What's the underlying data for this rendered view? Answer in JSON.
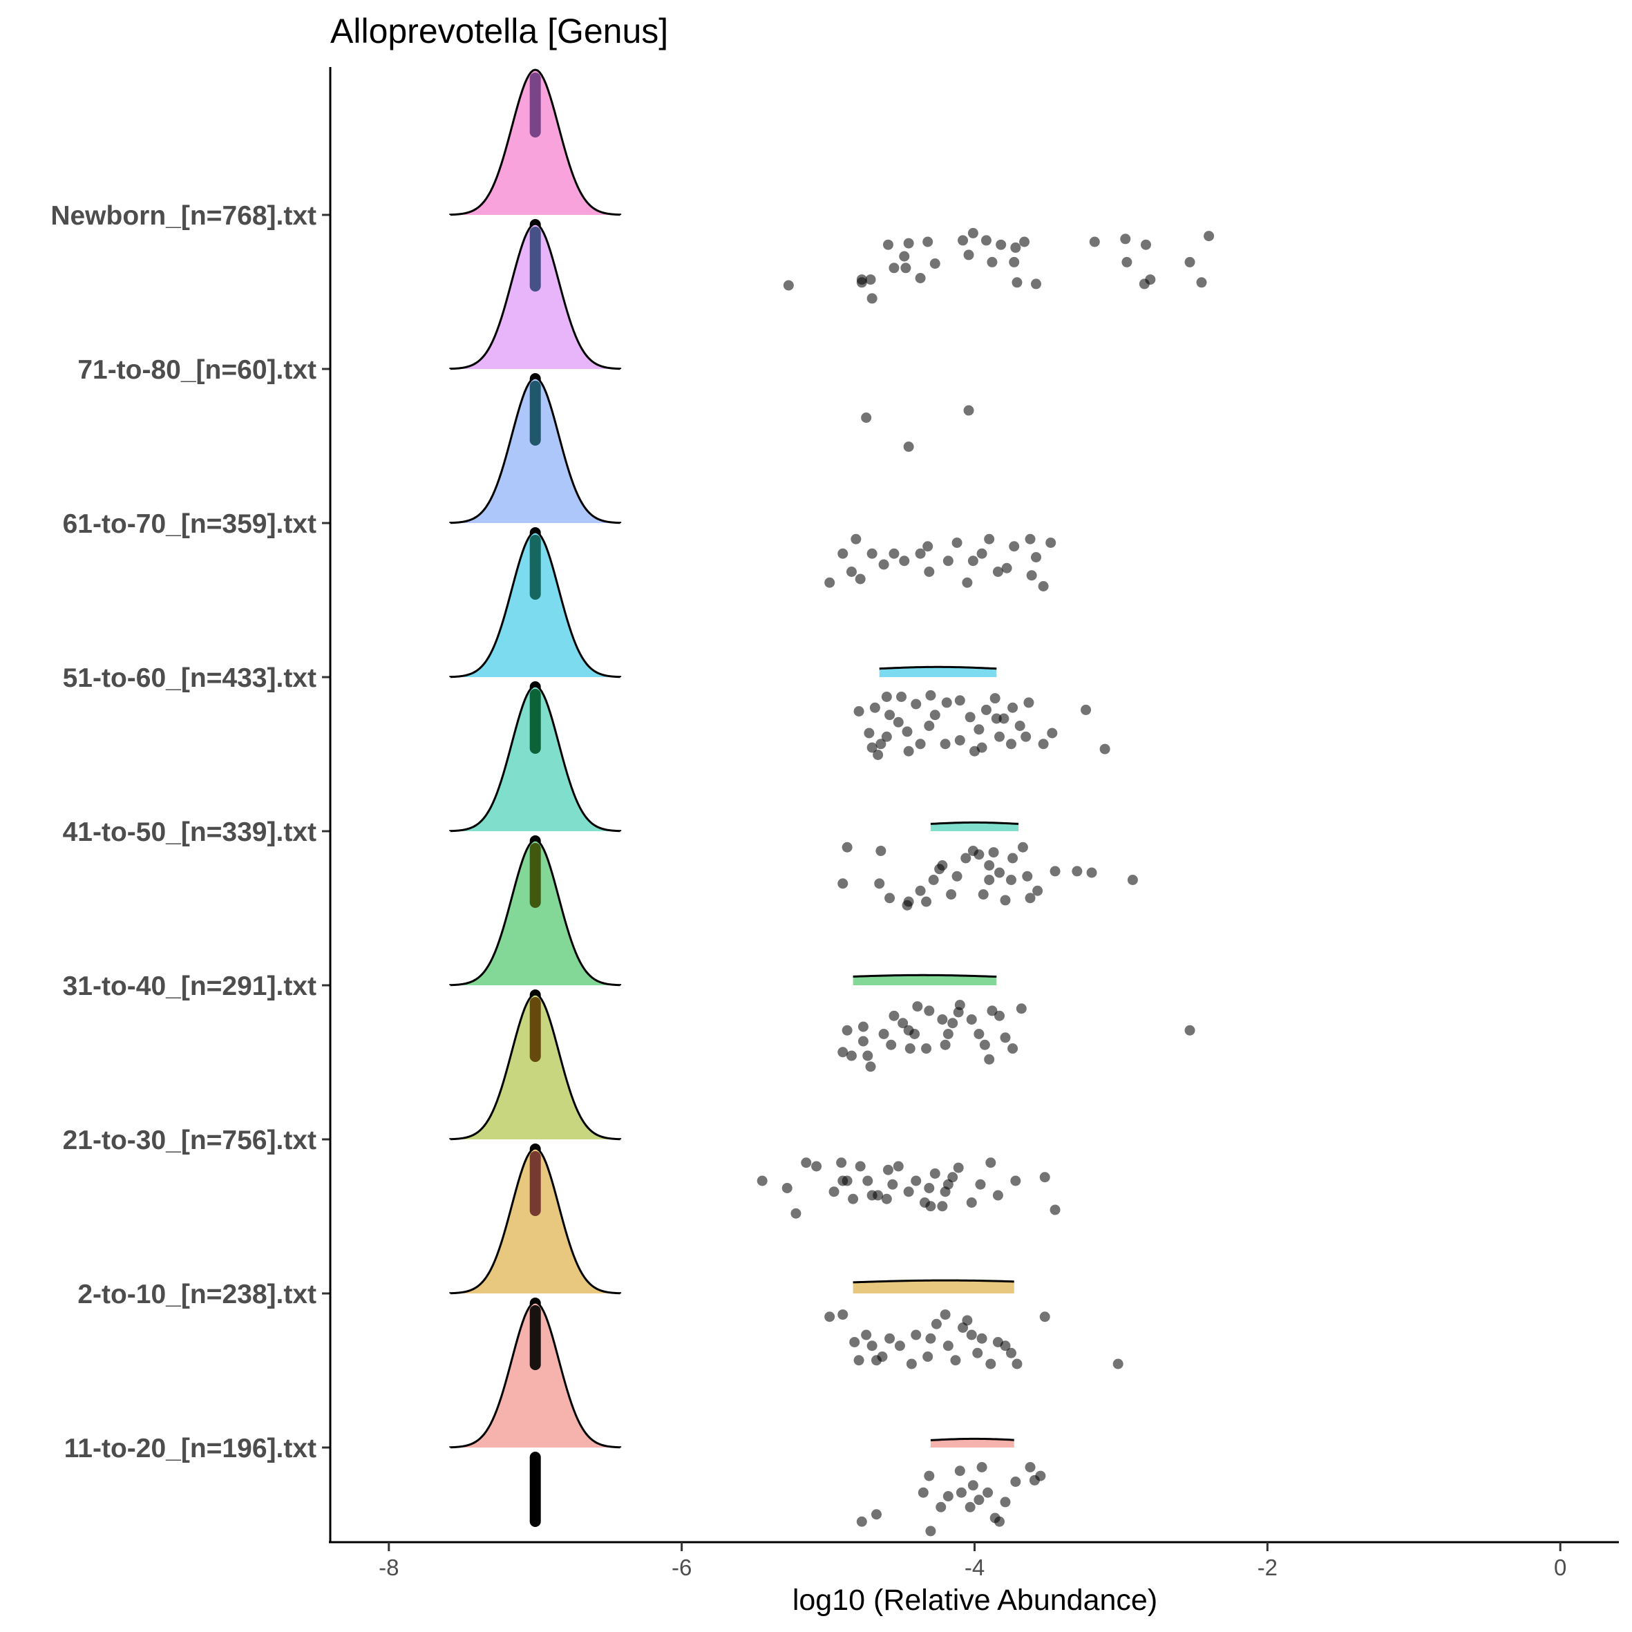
{
  "chart_data": {
    "type": "ridgeline",
    "title": "Alloprevotella [Genus]",
    "xlabel": "log10 (Relative Abundance)",
    "ylabel": "",
    "xlim": [
      -8.4,
      0.4
    ],
    "x_ticks": [
      -8,
      -6,
      -4,
      -2,
      0
    ],
    "x_tick_labels": [
      "-8",
      "-6",
      "-4",
      "-2",
      "0"
    ],
    "grid": false,
    "legend": "none",
    "point_color": "#000000",
    "point_opacity": 0.55,
    "baseline_value": -7,
    "series": [
      {
        "name": "Newborn_[n=768].txt",
        "color": "#f9a3dc",
        "median_color": "#6b3a80",
        "density": {
          "mean": -7,
          "sd": 0.16,
          "range": [
            -7.58,
            -6.42
          ]
        },
        "minor_density": null,
        "points": [
          [
            -5.27,
            0.2
          ],
          [
            -4.77,
            0.24
          ],
          [
            -4.77,
            0.28
          ],
          [
            -4.71,
            0.28
          ],
          [
            -4.7,
            0.02
          ],
          [
            -4.59,
            0.76
          ],
          [
            -4.55,
            0.44
          ],
          [
            -4.48,
            0.6
          ],
          [
            -4.45,
            0.78
          ],
          [
            -4.47,
            0.44
          ],
          [
            -4.37,
            0.3
          ],
          [
            -4.32,
            0.8
          ],
          [
            -4.27,
            0.5
          ],
          [
            -4.04,
            0.62
          ],
          [
            -4.08,
            0.82
          ],
          [
            -4.01,
            0.92
          ],
          [
            -3.88,
            0.52
          ],
          [
            -3.92,
            0.82
          ],
          [
            -3.82,
            0.76
          ],
          [
            -3.72,
            0.72
          ],
          [
            -3.73,
            0.52
          ],
          [
            -3.71,
            0.24
          ],
          [
            -3.66,
            0.8
          ],
          [
            -3.58,
            0.22
          ],
          [
            -3.18,
            0.8
          ],
          [
            -2.96,
            0.52
          ],
          [
            -2.97,
            0.84
          ],
          [
            -2.84,
            0.22
          ],
          [
            -2.83,
            0.76
          ],
          [
            -2.8,
            0.28
          ],
          [
            -2.53,
            0.52
          ],
          [
            -2.45,
            0.24
          ],
          [
            -2.4,
            0.88
          ]
        ]
      },
      {
        "name": "71-to-80_[n=60].txt",
        "color": "#e8b5fb",
        "median_color": "#34477a",
        "density": {
          "mean": -7,
          "sd": 0.16,
          "range": [
            -7.58,
            -6.42
          ]
        },
        "minor_density": null,
        "points": [
          [
            -4.74,
            0.5
          ],
          [
            -4.04,
            0.6
          ],
          [
            -4.45,
            0.1
          ]
        ]
      },
      {
        "name": "61-to-70_[n=359].txt",
        "color": "#aec7fb",
        "median_color": "#124a5c",
        "density": {
          "mean": -7,
          "sd": 0.16,
          "range": [
            -7.58,
            -6.42
          ]
        },
        "minor_density": null,
        "points": [
          [
            -4.99,
            0.35
          ],
          [
            -4.81,
            0.95
          ],
          [
            -4.9,
            0.75
          ],
          [
            -4.84,
            0.5
          ],
          [
            -4.78,
            0.4
          ],
          [
            -4.7,
            0.75
          ],
          [
            -4.62,
            0.6
          ],
          [
            -4.55,
            0.75
          ],
          [
            -4.48,
            0.65
          ],
          [
            -4.37,
            0.75
          ],
          [
            -4.31,
            0.5
          ],
          [
            -4.32,
            0.85
          ],
          [
            -4.18,
            0.65
          ],
          [
            -4.12,
            0.9
          ],
          [
            -4.05,
            0.35
          ],
          [
            -4.01,
            0.65
          ],
          [
            -3.95,
            0.75
          ],
          [
            -3.9,
            0.95
          ],
          [
            -3.84,
            0.5
          ],
          [
            -3.78,
            0.55
          ],
          [
            -3.73,
            0.85
          ],
          [
            -3.62,
            0.95
          ],
          [
            -3.58,
            0.7
          ],
          [
            -3.61,
            0.45
          ],
          [
            -3.53,
            0.3
          ],
          [
            -3.48,
            0.9
          ]
        ]
      },
      {
        "name": "51-to-60_[n=433].txt",
        "color": "#7cdbef",
        "median_color": "#0a5a50",
        "density": {
          "mean": -7,
          "sd": 0.16,
          "range": [
            -7.58,
            -6.42
          ]
        },
        "minor_density": {
          "mean": -4.25,
          "sd": 0.42,
          "range": [
            -4.65,
            -3.85
          ],
          "height": 0.07
        },
        "points": [
          [
            -4.79,
            0.7
          ],
          [
            -4.72,
            0.4
          ],
          [
            -4.68,
            0.75
          ],
          [
            -4.66,
            0.1
          ],
          [
            -4.64,
            0.25
          ],
          [
            -4.58,
            0.65
          ],
          [
            -4.52,
            0.55
          ],
          [
            -4.46,
            0.42
          ],
          [
            -4.4,
            0.8
          ],
          [
            -4.37,
            0.25
          ],
          [
            -4.31,
            0.5
          ],
          [
            -4.27,
            0.65
          ],
          [
            -4.19,
            0.82
          ],
          [
            -4.1,
            0.3
          ],
          [
            -4.03,
            0.62
          ],
          [
            -3.97,
            0.45
          ],
          [
            -3.92,
            0.72
          ],
          [
            -3.86,
            0.88
          ],
          [
            -3.83,
            0.35
          ],
          [
            -3.8,
            0.6
          ],
          [
            -3.74,
            0.75
          ],
          [
            -3.69,
            0.5
          ],
          [
            -3.63,
            0.82
          ],
          [
            -3.53,
            0.25
          ],
          [
            -3.47,
            0.4
          ],
          [
            -3.24,
            0.72
          ],
          [
            -3.11,
            0.18
          ],
          [
            -4.7,
            0.2
          ],
          [
            -4.6,
            0.35
          ],
          [
            -4.45,
            0.15
          ],
          [
            -4.2,
            0.25
          ],
          [
            -4.1,
            0.85
          ],
          [
            -4.0,
            0.15
          ],
          [
            -3.95,
            0.2
          ],
          [
            -3.75,
            0.25
          ],
          [
            -4.5,
            0.9
          ],
          [
            -4.3,
            0.92
          ],
          [
            -4.6,
            0.9
          ],
          [
            -3.85,
            0.6
          ],
          [
            -3.65,
            0.35
          ]
        ]
      },
      {
        "name": "41-to-50_[n=339].txt",
        "color": "#7fdfcc",
        "median_color": "#005528",
        "density": {
          "mean": -7,
          "sd": 0.16,
          "range": [
            -7.58,
            -6.42
          ]
        },
        "minor_density": {
          "mean": -4.0,
          "sd": 0.32,
          "range": [
            -4.3,
            -3.7
          ],
          "height": 0.06
        },
        "points": [
          [
            -4.9,
            0.45
          ],
          [
            -4.87,
            0.95
          ],
          [
            -4.65,
            0.45
          ],
          [
            -4.64,
            0.9
          ],
          [
            -4.58,
            0.25
          ],
          [
            -4.46,
            0.15
          ],
          [
            -4.45,
            0.2
          ],
          [
            -4.37,
            0.35
          ],
          [
            -4.33,
            0.2
          ],
          [
            -4.28,
            0.5
          ],
          [
            -4.24,
            0.65
          ],
          [
            -4.22,
            0.7
          ],
          [
            -4.16,
            0.3
          ],
          [
            -4.12,
            0.55
          ],
          [
            -4.06,
            0.8
          ],
          [
            -4.01,
            0.9
          ],
          [
            -3.97,
            0.85
          ],
          [
            -3.94,
            0.3
          ],
          [
            -3.9,
            0.5
          ],
          [
            -3.87,
            0.88
          ],
          [
            -3.83,
            0.6
          ],
          [
            -3.79,
            0.22
          ],
          [
            -3.74,
            0.8
          ],
          [
            -3.67,
            0.95
          ],
          [
            -3.64,
            0.55
          ],
          [
            -3.62,
            0.25
          ],
          [
            -3.57,
            0.35
          ],
          [
            -3.45,
            0.62
          ],
          [
            -3.3,
            0.62
          ],
          [
            -3.2,
            0.6
          ],
          [
            -2.92,
            0.5
          ],
          [
            -3.9,
            0.7
          ],
          [
            -3.75,
            0.5
          ]
        ]
      },
      {
        "name": "31-to-40_[n=291].txt",
        "color": "#83d898",
        "median_color": "#3a4a00",
        "density": {
          "mean": -7,
          "sd": 0.16,
          "range": [
            -7.58,
            -6.42
          ]
        },
        "minor_density": {
          "mean": -4.35,
          "sd": 0.55,
          "range": [
            -4.83,
            -3.85
          ],
          "height": 0.07
        },
        "points": [
          [
            -4.9,
            0.25
          ],
          [
            -4.87,
            0.55
          ],
          [
            -4.84,
            0.2
          ],
          [
            -4.76,
            0.4
          ],
          [
            -4.76,
            0.6
          ],
          [
            -4.73,
            0.2
          ],
          [
            -4.71,
            0.05
          ],
          [
            -4.62,
            0.5
          ],
          [
            -4.57,
            0.35
          ],
          [
            -4.55,
            0.75
          ],
          [
            -4.49,
            0.65
          ],
          [
            -4.44,
            0.3
          ],
          [
            -4.41,
            0.5
          ],
          [
            -4.39,
            0.88
          ],
          [
            -4.33,
            0.3
          ],
          [
            -4.31,
            0.82
          ],
          [
            -4.22,
            0.7
          ],
          [
            -4.18,
            0.5
          ],
          [
            -4.15,
            0.65
          ],
          [
            -4.11,
            0.8
          ],
          [
            -4.1,
            0.9
          ],
          [
            -4.02,
            0.7
          ],
          [
            -3.97,
            0.5
          ],
          [
            -3.93,
            0.35
          ],
          [
            -3.88,
            0.82
          ],
          [
            -3.83,
            0.75
          ],
          [
            -3.79,
            0.45
          ],
          [
            -3.74,
            0.3
          ],
          [
            -3.68,
            0.85
          ],
          [
            -2.53,
            0.55
          ],
          [
            -3.9,
            0.15
          ],
          [
            -4.2,
            0.35
          ],
          [
            -4.45,
            0.55
          ]
        ]
      },
      {
        "name": "21-to-30_[n=756].txt",
        "color": "#c9d680",
        "median_color": "#5a3a00",
        "density": {
          "mean": -7,
          "sd": 0.16,
          "range": [
            -7.58,
            -6.42
          ]
        },
        "minor_density": null,
        "points": [
          [
            -5.45,
            0.6
          ],
          [
            -5.28,
            0.5
          ],
          [
            -5.22,
            0.15
          ],
          [
            -5.15,
            0.85
          ],
          [
            -5.08,
            0.8
          ],
          [
            -4.96,
            0.45
          ],
          [
            -4.91,
            0.85
          ],
          [
            -4.87,
            0.6
          ],
          [
            -4.83,
            0.35
          ],
          [
            -4.78,
            0.8
          ],
          [
            -4.73,
            0.6
          ],
          [
            -4.66,
            0.4
          ],
          [
            -4.59,
            0.75
          ],
          [
            -4.56,
            0.55
          ],
          [
            -4.52,
            0.8
          ],
          [
            -4.45,
            0.45
          ],
          [
            -4.4,
            0.6
          ],
          [
            -4.34,
            0.3
          ],
          [
            -4.31,
            0.5
          ],
          [
            -4.27,
            0.7
          ],
          [
            -4.22,
            0.25
          ],
          [
            -4.18,
            0.55
          ],
          [
            -4.15,
            0.65
          ],
          [
            -4.11,
            0.78
          ],
          [
            -4.02,
            0.3
          ],
          [
            -3.96,
            0.55
          ],
          [
            -3.89,
            0.85
          ],
          [
            -3.84,
            0.4
          ],
          [
            -3.72,
            0.6
          ],
          [
            -3.52,
            0.65
          ],
          [
            -3.45,
            0.2
          ],
          [
            -4.6,
            0.35
          ],
          [
            -4.3,
            0.25
          ],
          [
            -4.9,
            0.6
          ],
          [
            -4.7,
            0.4
          ],
          [
            -4.2,
            0.45
          ]
        ]
      },
      {
        "name": "2-to-10_[n=238].txt",
        "color": "#e8c77f",
        "median_color": "#6a2a28",
        "density": {
          "mean": -7,
          "sd": 0.16,
          "range": [
            -7.58,
            -6.42
          ]
        },
        "minor_density": {
          "mean": -4.2,
          "sd": 0.7,
          "range": [
            -4.83,
            -3.73
          ],
          "height": 0.09
        },
        "points": [
          [
            -4.99,
            0.85
          ],
          [
            -4.9,
            0.88
          ],
          [
            -4.82,
            0.5
          ],
          [
            -4.79,
            0.25
          ],
          [
            -4.74,
            0.6
          ],
          [
            -4.7,
            0.45
          ],
          [
            -4.67,
            0.25
          ],
          [
            -4.63,
            0.3
          ],
          [
            -4.58,
            0.55
          ],
          [
            -4.51,
            0.45
          ],
          [
            -4.43,
            0.2
          ],
          [
            -4.4,
            0.6
          ],
          [
            -4.32,
            0.3
          ],
          [
            -4.3,
            0.55
          ],
          [
            -4.26,
            0.75
          ],
          [
            -4.18,
            0.45
          ],
          [
            -4.13,
            0.25
          ],
          [
            -4.08,
            0.7
          ],
          [
            -4.02,
            0.6
          ],
          [
            -3.98,
            0.35
          ],
          [
            -3.95,
            0.55
          ],
          [
            -3.89,
            0.2
          ],
          [
            -3.84,
            0.5
          ],
          [
            -3.79,
            0.45
          ],
          [
            -3.71,
            0.2
          ],
          [
            -3.52,
            0.85
          ],
          [
            -3.02,
            0.2
          ],
          [
            -4.2,
            0.88
          ],
          [
            -4.05,
            0.8
          ],
          [
            -3.75,
            0.35
          ]
        ]
      },
      {
        "name": "11-to-20_[n=196].txt",
        "color": "#f6b2ad",
        "median_color": "#000000",
        "density": {
          "mean": -7,
          "sd": 0.16,
          "range": [
            -7.58,
            -6.42
          ]
        },
        "minor_density": {
          "mean": -4.0,
          "sd": 0.32,
          "range": [
            -4.3,
            -3.73
          ],
          "height": 0.06
        },
        "points": [
          [
            -4.77,
            0.15
          ],
          [
            -4.67,
            0.25
          ],
          [
            -4.35,
            0.55
          ],
          [
            -4.31,
            0.78
          ],
          [
            -4.3,
            0.02
          ],
          [
            -4.23,
            0.35
          ],
          [
            -4.18,
            0.5
          ],
          [
            -4.09,
            0.55
          ],
          [
            -4.03,
            0.35
          ],
          [
            -4.01,
            0.65
          ],
          [
            -3.97,
            0.45
          ],
          [
            -3.91,
            0.55
          ],
          [
            -3.86,
            0.2
          ],
          [
            -3.83,
            0.15
          ],
          [
            -3.79,
            0.42
          ],
          [
            -3.72,
            0.7
          ],
          [
            -3.59,
            0.72
          ],
          [
            -3.55,
            0.78
          ],
          [
            -3.62,
            0.9
          ],
          [
            -4.1,
            0.85
          ],
          [
            -3.95,
            0.9
          ]
        ]
      }
    ]
  }
}
